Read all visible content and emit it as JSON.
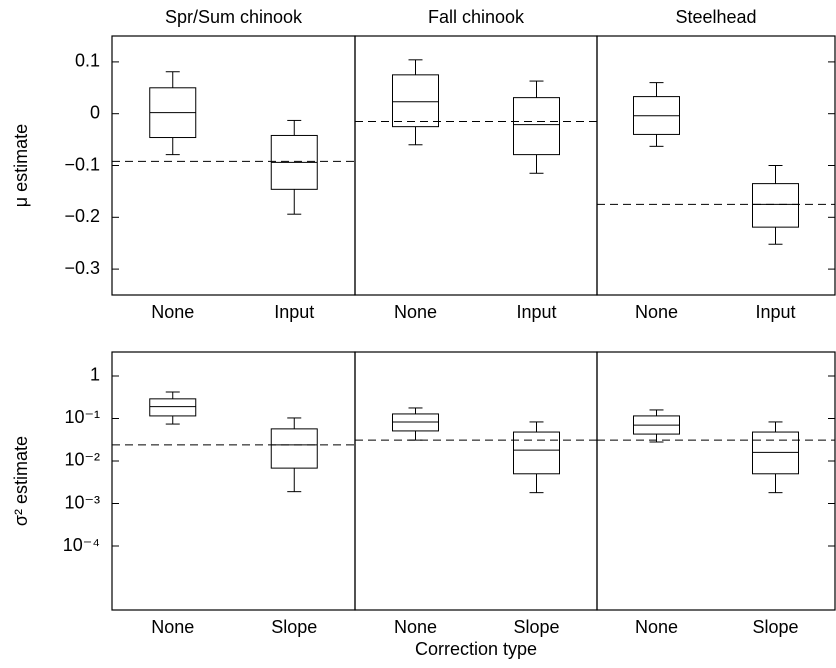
{
  "chart_data": [
    {
      "type": "box",
      "title": "Spr/Sum chinook",
      "ylabel": "μ estimate",
      "categories": [
        "None",
        "Input"
      ],
      "boxes": [
        {
          "whislo": -0.079,
          "q1": -0.046,
          "med": 0.002,
          "q3": 0.05,
          "whishi": 0.081
        },
        {
          "whislo": -0.194,
          "q1": -0.146,
          "med": -0.094,
          "q3": -0.042,
          "whishi": -0.013
        }
      ],
      "reference_line": -0.092,
      "color": "#000000",
      "ylim": [
        -0.35,
        0.15
      ],
      "yticks": [
        {
          "value": -0.3,
          "label": "−0.3"
        },
        {
          "value": -0.2,
          "label": "−0.2"
        },
        {
          "value": -0.1,
          "label": "−0.1"
        },
        0,
        0.1
      ]
    },
    {
      "type": "box",
      "title": "Fall chinook",
      "categories": [
        "None",
        "Input"
      ],
      "boxes": [
        {
          "whislo": -0.06,
          "q1": -0.025,
          "med": 0.023,
          "q3": 0.075,
          "whishi": 0.104
        },
        {
          "whislo": -0.115,
          "q1": -0.079,
          "med": -0.021,
          "q3": 0.031,
          "whishi": 0.063
        }
      ],
      "reference_line": -0.015,
      "color": "#000000",
      "ylim": [
        -0.35,
        0.15
      ]
    },
    {
      "type": "box",
      "title": "Steelhead",
      "categories": [
        "None",
        "Input"
      ],
      "boxes": [
        {
          "whislo": -0.063,
          "q1": -0.04,
          "med": -0.004,
          "q3": 0.033,
          "whishi": 0.06
        },
        {
          "whislo": -0.252,
          "q1": -0.219,
          "med": -0.175,
          "q3": -0.135,
          "whishi": -0.1
        }
      ],
      "reference_line": -0.175,
      "color": "#000000",
      "ylim": [
        -0.35,
        0.15
      ]
    },
    {
      "type": "box",
      "ylabel": "σ² estimate",
      "categories": [
        "None",
        "Slope"
      ],
      "log_scale": true,
      "boxes": [
        {
          "whislo": 0.074,
          "q1": 0.115,
          "med": 0.19,
          "q3": 0.29,
          "whishi": 0.42
        },
        {
          "whislo": 0.0019,
          "q1": 0.0068,
          "med": 0.024,
          "q3": 0.057,
          "whishi": 0.103
        }
      ],
      "reference_line": 0.024,
      "color": "#000000",
      "ylim": [
        3.12e-06,
        3.67
      ],
      "yticks": [
        {
          "value": 0.0001,
          "label": "10⁻⁴"
        },
        {
          "value": 0.001,
          "label": "10⁻³"
        },
        {
          "value": 0.01,
          "label": "10⁻²"
        },
        {
          "value": 0.1,
          "label": "10⁻¹"
        },
        1
      ]
    },
    {
      "type": "box",
      "xlabel": "Correction type",
      "categories": [
        "None",
        "Slope"
      ],
      "log_scale": true,
      "boxes": [
        {
          "whislo": 0.031,
          "q1": 0.051,
          "med": 0.083,
          "q3": 0.128,
          "whishi": 0.177
        },
        {
          "whislo": 0.0018,
          "q1": 0.005,
          "med": 0.018,
          "q3": 0.048,
          "whishi": 0.083
        }
      ],
      "reference_line": 0.031,
      "color": "#000000",
      "ylim": [
        3.12e-06,
        3.67
      ]
    },
    {
      "type": "box",
      "categories": [
        "None",
        "Slope"
      ],
      "log_scale": true,
      "boxes": [
        {
          "whislo": 0.028,
          "q1": 0.043,
          "med": 0.07,
          "q3": 0.115,
          "whishi": 0.159
        },
        {
          "whislo": 0.0018,
          "q1": 0.005,
          "med": 0.016,
          "q3": 0.048,
          "whishi": 0.083
        }
      ],
      "reference_line": 0.031,
      "color": "#000000",
      "ylim": [
        3.12e-06,
        3.67
      ]
    }
  ]
}
